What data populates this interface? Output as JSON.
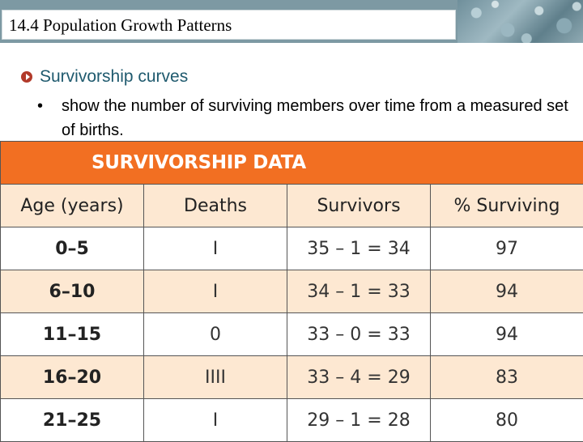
{
  "header": {
    "title": "14.4 Population Growth Patterns"
  },
  "content": {
    "main_bullet": "Survivorship curves",
    "sub_bullet_marker": "•",
    "sub_bullet": "show the number of surviving members over time from a measured set of births."
  },
  "table": {
    "title": "SURVIVORSHIP DATA",
    "columns": [
      "Age (years)",
      "Deaths",
      "Survivors",
      "% Surviving"
    ],
    "rows": [
      {
        "age": "0–5",
        "deaths": "I",
        "survivors": "35 – 1 = 34",
        "percent": "97"
      },
      {
        "age": "6–10",
        "deaths": "I",
        "survivors": "34 – 1 = 33",
        "percent": "94"
      },
      {
        "age": "11–15",
        "deaths": "0",
        "survivors": "33 – 0 = 33",
        "percent": "94"
      },
      {
        "age": "16–20",
        "deaths": "IIII",
        "survivors": "33 – 4 = 29",
        "percent": "83"
      },
      {
        "age": "21–25",
        "deaths": "I",
        "survivors": "29 – 1 = 28",
        "percent": "80"
      }
    ]
  },
  "colors": {
    "title_fill": "#f26f22",
    "alt_row": "#fde8d2",
    "heading_text": "#1f5a6e",
    "bullet_icon": "#b23a2a"
  },
  "icons": {
    "main_bullet": "circle-arrow-bullet-icon"
  }
}
